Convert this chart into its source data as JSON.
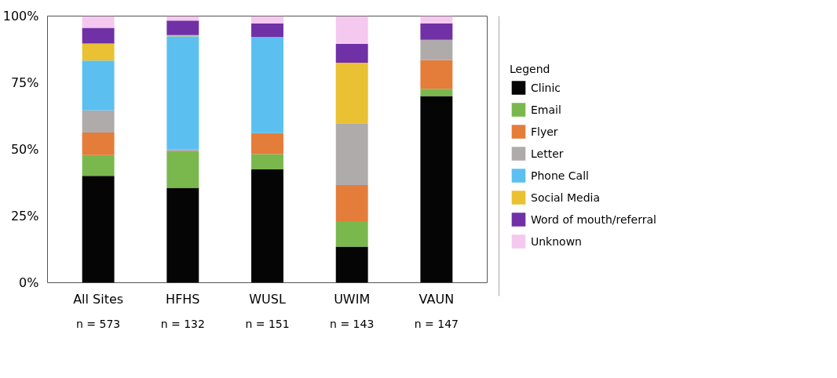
{
  "chart_data": {
    "type": "bar",
    "stacked": true,
    "legend": "right",
    "legend_title": "Legend",
    "grid": false,
    "categories": [
      "All Sites",
      "HFHS",
      "WUSL",
      "UWIM",
      "VAUN"
    ],
    "annotations": [
      "n = 573",
      "n = 132",
      "n = 151",
      "n = 143",
      "n = 147"
    ],
    "ylim": [
      0,
      100
    ],
    "yticks": [
      {
        "value": 0,
        "label": "0%"
      },
      {
        "value": 25,
        "label": "25%"
      },
      {
        "value": 50,
        "label": "50%"
      },
      {
        "value": 75,
        "label": "75%"
      },
      {
        "value": 100,
        "label": "100%"
      }
    ],
    "series": [
      {
        "name": "Clinic",
        "color": "#050505",
        "values": [
          40.1,
          35.6,
          42.5,
          13.5,
          70.0
        ]
      },
      {
        "name": "Email",
        "color": "#7ab84e",
        "values": [
          7.8,
          13.7,
          5.7,
          9.6,
          2.7
        ]
      },
      {
        "name": "Flyer",
        "color": "#e47c3a",
        "values": [
          8.4,
          0,
          7.9,
          13.5,
          10.8
        ]
      },
      {
        "name": "Letter",
        "color": "#afabab",
        "values": [
          8.3,
          0.6,
          0,
          23.2,
          7.6
        ]
      },
      {
        "name": "Phone Call",
        "color": "#5bc0f0",
        "values": [
          18.7,
          42.5,
          36.0,
          0,
          0
        ]
      },
      {
        "name": "Social Media",
        "color": "#e9c132",
        "values": [
          6.4,
          0.5,
          0,
          22.7,
          0
        ]
      },
      {
        "name": "Word of mouth/referral",
        "color": "#7030a6",
        "values": [
          5.9,
          5.4,
          5.1,
          7.1,
          6.2
        ]
      },
      {
        "name": "Unknown",
        "color": "#f5c8ef",
        "values": [
          4.3,
          1.6,
          2.7,
          10.3,
          2.7
        ]
      }
    ]
  }
}
